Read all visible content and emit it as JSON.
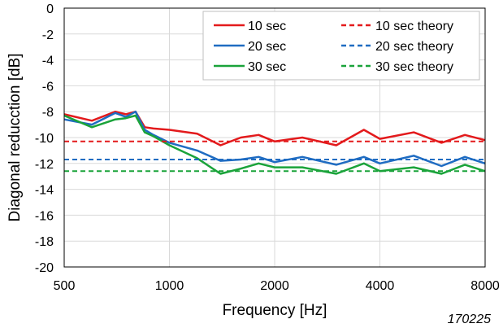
{
  "chart_data": {
    "type": "line",
    "xlabel": "Frequency [Hz]",
    "ylabel": "Diagonal reducction [dB]",
    "x_scale": "log2",
    "xlim": [
      500,
      8000
    ],
    "ylim": [
      -20,
      0
    ],
    "x_ticks": [
      500,
      1000,
      2000,
      4000,
      8000
    ],
    "x_tick_labels": [
      "500",
      "1000",
      "2000",
      "4000",
      "8000"
    ],
    "y_ticks": [
      0,
      -2,
      -4,
      -6,
      -8,
      -10,
      -12,
      -14,
      -16,
      -18,
      -20
    ],
    "y_tick_labels": [
      "0",
      "-2",
      "-4",
      "-6",
      "-8",
      "-10",
      "-12",
      "-14",
      "-16",
      "-18",
      "-20"
    ],
    "grid": "on",
    "legend_placement": "top-right",
    "annotation": "170225",
    "series": [
      {
        "name": "10 sec",
        "color": "#e31a1c",
        "style": "solid",
        "x": [
          500,
          600,
          700,
          750,
          800,
          850,
          900,
          1000,
          1200,
          1400,
          1600,
          1800,
          2000,
          2400,
          3000,
          3600,
          4000,
          5000,
          6000,
          7000,
          8000
        ],
        "y": [
          -8.2,
          -8.7,
          -8.0,
          -8.2,
          -8.0,
          -9.2,
          -9.3,
          -9.4,
          -9.7,
          -10.6,
          -10.0,
          -9.8,
          -10.3,
          -10.0,
          -10.6,
          -9.4,
          -10.1,
          -9.6,
          -10.4,
          -9.8,
          -10.2
        ]
      },
      {
        "name": "20 sec",
        "color": "#1f6cc2",
        "style": "solid",
        "x": [
          500,
          600,
          700,
          750,
          800,
          850,
          900,
          1000,
          1200,
          1400,
          1600,
          1800,
          2000,
          2400,
          3000,
          3600,
          4000,
          5000,
          6000,
          7000,
          8000
        ],
        "y": [
          -8.6,
          -9.0,
          -8.1,
          -8.4,
          -8.0,
          -9.4,
          -9.8,
          -10.4,
          -11.0,
          -11.8,
          -11.7,
          -11.5,
          -11.9,
          -11.5,
          -12.1,
          -11.5,
          -12.0,
          -11.4,
          -12.2,
          -11.5,
          -12.0
        ]
      },
      {
        "name": "30 sec",
        "color": "#1aa33a",
        "style": "solid",
        "x": [
          500,
          600,
          700,
          750,
          800,
          850,
          900,
          1000,
          1200,
          1400,
          1600,
          1800,
          2000,
          2400,
          3000,
          3600,
          4000,
          5000,
          6000,
          7000,
          8000
        ],
        "y": [
          -8.3,
          -9.2,
          -8.6,
          -8.5,
          -8.3,
          -9.6,
          -9.9,
          -10.6,
          -11.6,
          -12.8,
          -12.4,
          -12.0,
          -12.3,
          -12.3,
          -12.8,
          -12.0,
          -12.6,
          -12.3,
          -12.8,
          -12.1,
          -12.6
        ]
      },
      {
        "name": "10 sec theory",
        "color": "#e31a1c",
        "style": "dashed",
        "x": [
          500,
          8000
        ],
        "y": [
          -10.3,
          -10.3
        ]
      },
      {
        "name": "20 sec theory",
        "color": "#1f6cc2",
        "style": "dashed",
        "x": [
          500,
          8000
        ],
        "y": [
          -11.7,
          -11.7
        ]
      },
      {
        "name": "30 sec theory",
        "color": "#1aa33a",
        "style": "dashed",
        "x": [
          500,
          8000
        ],
        "y": [
          -12.6,
          -12.6
        ]
      }
    ]
  }
}
